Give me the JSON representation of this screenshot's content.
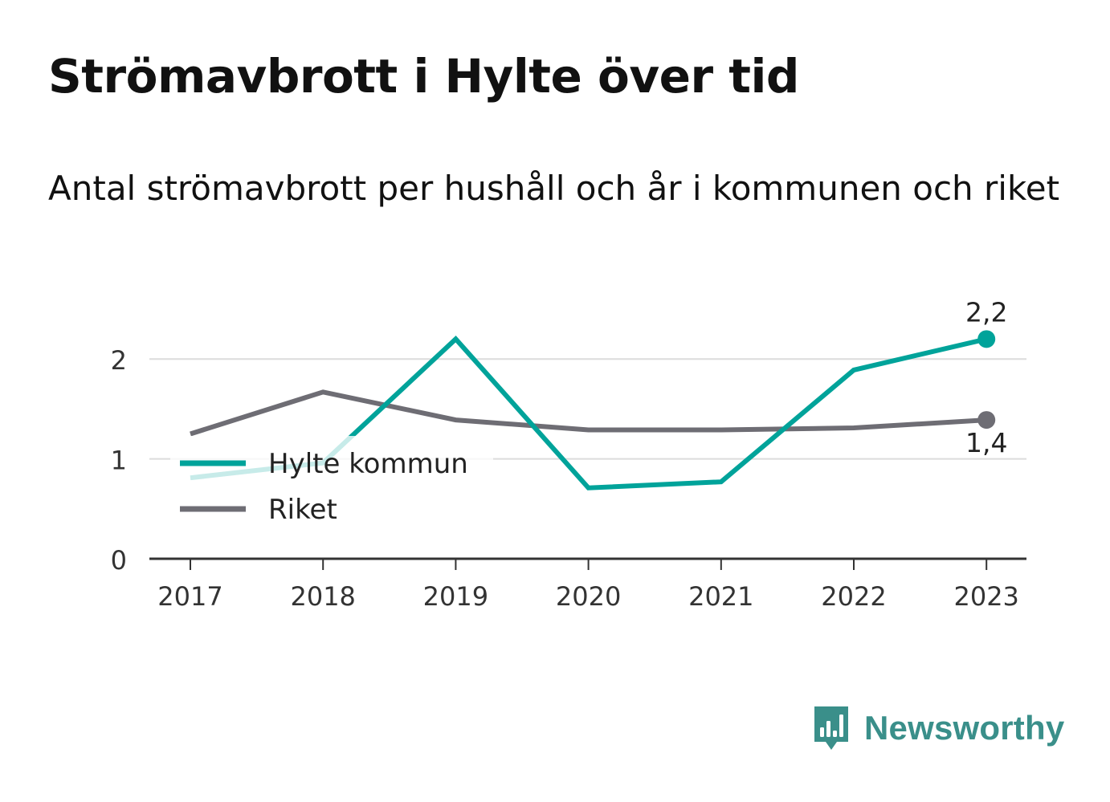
{
  "title": "Strömavbrott i Hylte över tid",
  "subtitle": "Antal strömavbrott per hushåll och år i kommunen och riket",
  "brand": {
    "name": "Newsworthy",
    "icon": "newsworthy-logo-icon",
    "color": "#3a8f8a"
  },
  "chart_data": {
    "type": "line",
    "title": "Strömavbrott i Hylte över tid",
    "subtitle": "Antal strömavbrott per hushåll och år i kommunen och riket",
    "xlabel": "",
    "ylabel": "",
    "x": [
      "2017",
      "2018",
      "2019",
      "2020",
      "2021",
      "2022",
      "2023"
    ],
    "ylim": [
      0,
      2.2
    ],
    "yticks": [
      0,
      1,
      2
    ],
    "grid": true,
    "legend_position": "left",
    "series": [
      {
        "name": "Hylte kommun",
        "color": "#00a39a",
        "values": [
          0.81,
          0.96,
          2.2,
          0.71,
          0.77,
          1.89,
          2.2
        ],
        "end_label": "2,2"
      },
      {
        "name": "Riket",
        "color": "#6e6d74",
        "values": [
          1.25,
          1.67,
          1.39,
          1.29,
          1.29,
          1.31,
          1.39
        ],
        "end_label": "1,4"
      }
    ]
  }
}
